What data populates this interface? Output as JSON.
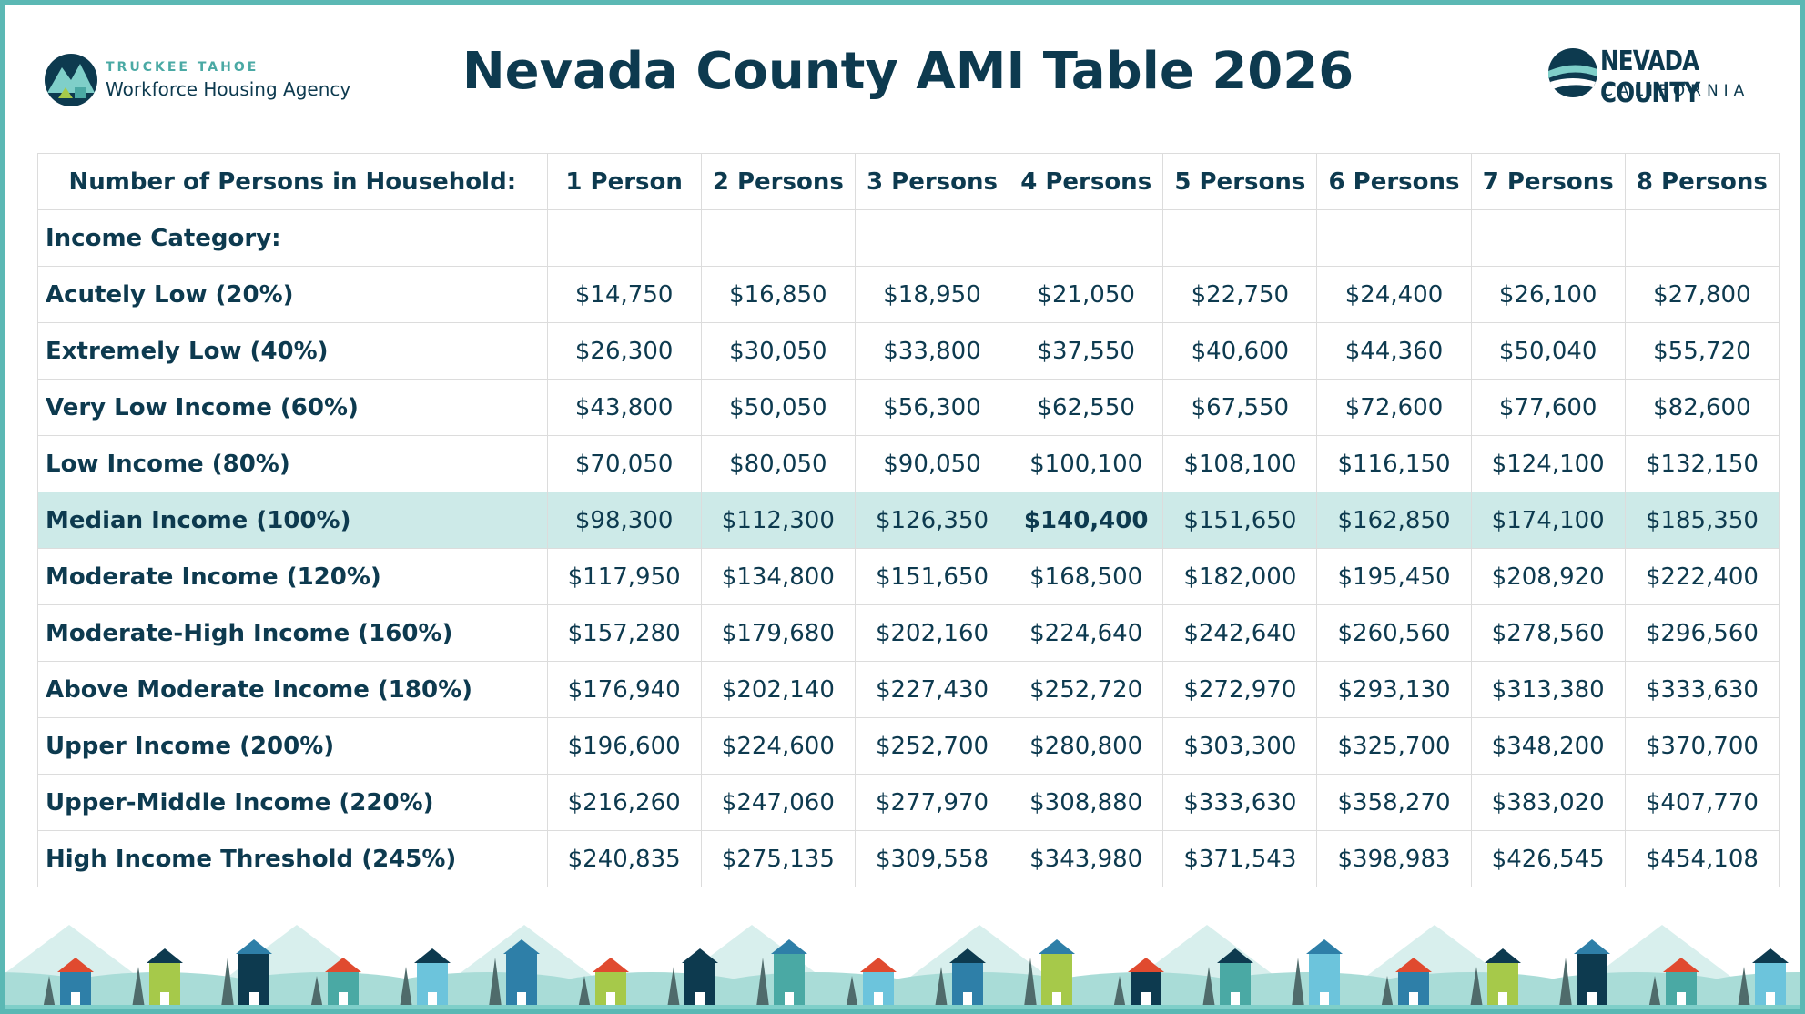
{
  "header": {
    "left_logo": {
      "top": "TRUCKEE TAHOE",
      "bottom": "Workforce Housing Agency"
    },
    "title": "Nevada County AMI Table 2026",
    "right_logo": {
      "top": "NEVADA COUNTY",
      "bottom": "CALIFORNIA"
    }
  },
  "table": {
    "columns": [
      "Number of Persons in Household:",
      "1 Person",
      "2 Persons",
      "3 Persons",
      "4 Persons",
      "5 Persons",
      "6 Persons",
      "7 Persons",
      "8 Persons"
    ],
    "section_label": "Income Category:",
    "rows": [
      {
        "label": "Acutely Low (20%)",
        "values": [
          "$14,750",
          "$16,850",
          "$18,950",
          "$21,050",
          "$22,750",
          "$24,400",
          "$26,100",
          "$27,800"
        ]
      },
      {
        "label": "Extremely Low (40%)",
        "values": [
          "$26,300",
          "$30,050",
          "$33,800",
          "$37,550",
          "$40,600",
          "$44,360",
          "$50,040",
          "$55,720"
        ]
      },
      {
        "label": "Very Low Income (60%)",
        "values": [
          "$43,800",
          "$50,050",
          "$56,300",
          "$62,550",
          "$67,550",
          "$72,600",
          "$77,600",
          "$82,600"
        ]
      },
      {
        "label": "Low Income (80%)",
        "values": [
          "$70,050",
          "$80,050",
          "$90,050",
          "$100,100",
          "$108,100",
          "$116,150",
          "$124,100",
          "$132,150"
        ]
      },
      {
        "label": "Median Income (100%)",
        "values": [
          "$98,300",
          "$112,300",
          "$126,350",
          "$140,400",
          "$151,650",
          "$162,850",
          "$174,100",
          "$185,350"
        ]
      },
      {
        "label": "Moderate Income (120%)",
        "values": [
          "$117,950",
          "$134,800",
          "$151,650",
          "$168,500",
          "$182,000",
          "$195,450",
          "$208,920",
          "$222,400"
        ]
      },
      {
        "label": "Moderate-High Income (160%)",
        "values": [
          "$157,280",
          "$179,680",
          "$202,160",
          "$224,640",
          "$242,640",
          "$260,560",
          "$278,560",
          "$296,560"
        ]
      },
      {
        "label": "Above Moderate Income (180%)",
        "values": [
          "$176,940",
          "$202,140",
          "$227,430",
          "$252,720",
          "$272,970",
          "$293,130",
          "$313,380",
          "$333,630"
        ]
      },
      {
        "label": "Upper Income (200%)",
        "values": [
          "$196,600",
          "$224,600",
          "$252,700",
          "$280,800",
          "$303,300",
          "$325,700",
          "$348,200",
          "$370,700"
        ]
      },
      {
        "label": "Upper-Middle Income (220%)",
        "values": [
          "$216,260",
          "$247,060",
          "$277,970",
          "$308,880",
          "$333,630",
          "$358,270",
          "$383,020",
          "$407,770"
        ]
      },
      {
        "label": "High Income Threshold (245%)",
        "values": [
          "$240,835",
          "$275,135",
          "$309,558",
          "$343,980",
          "$371,543",
          "$398,983",
          "$426,545",
          "$454,108"
        ]
      }
    ]
  }
}
